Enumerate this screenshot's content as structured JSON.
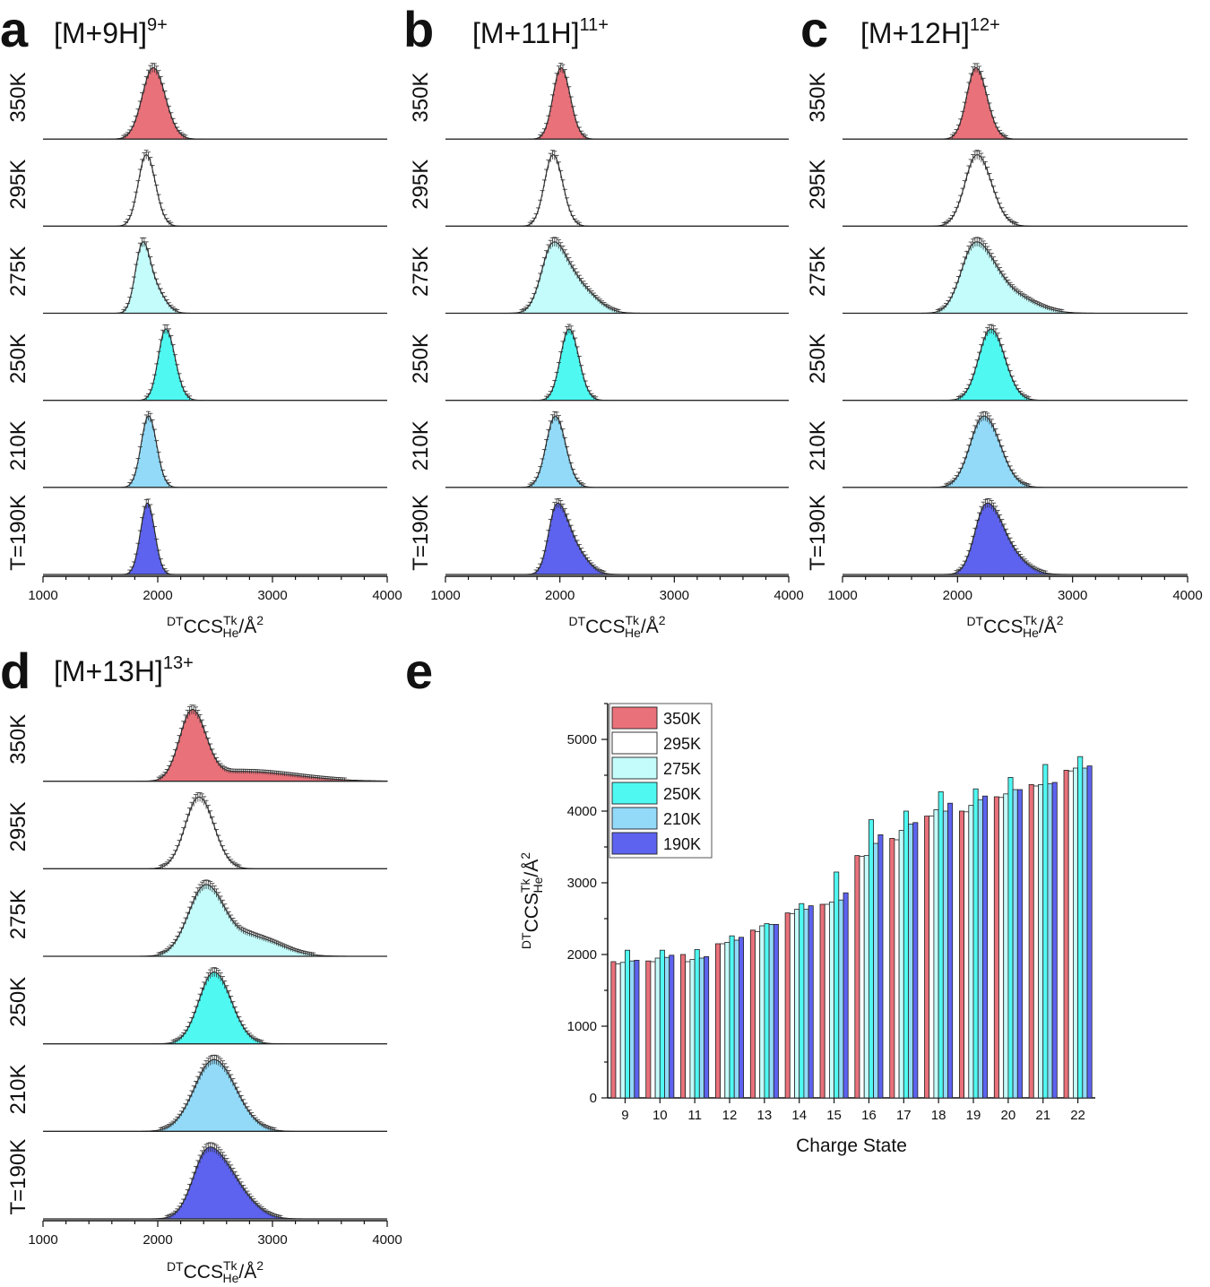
{
  "colors": {
    "350K": "#e9717a",
    "295K": "#ffffff",
    "275K": "#c4fbfb",
    "250K": "#4ff9f2",
    "210K": "#92daf8",
    "190K": "#5d63ef"
  },
  "chart_data": [
    {
      "panel": "a",
      "type": "area",
      "ion": "[M+9H]",
      "charge_sup": "9+",
      "xlabel": {
        "pre": "DT",
        "main": "CCS",
        "sup": "Tk",
        "sub": "He",
        "post": "/Å",
        "post_sup": "2"
      },
      "xlim": [
        1000,
        4000
      ],
      "xticks": [
        "1000",
        "2000",
        "3000",
        "4000"
      ],
      "traces": [
        {
          "label": "350K",
          "temp": "350K",
          "peaks": [
            {
              "mu": 1960,
              "sl": 95,
              "sr": 105,
              "a": 1.0
            }
          ]
        },
        {
          "label": "295K",
          "temp": "295K",
          "peaks": [
            {
              "mu": 1900,
              "sl": 70,
              "sr": 80,
              "a": 1.0
            }
          ]
        },
        {
          "label": "275K",
          "temp": "275K",
          "peaks": [
            {
              "mu": 1860,
              "sl": 60,
              "sr": 60,
              "a": 1.0
            },
            {
              "mu": 1960,
              "sl": 70,
              "sr": 90,
              "a": 0.45
            }
          ]
        },
        {
          "label": "250K",
          "temp": "250K",
          "peaks": [
            {
              "mu": 2070,
              "sl": 65,
              "sr": 80,
              "a": 1.0
            }
          ]
        },
        {
          "label": "210K",
          "temp": "210K",
          "peaks": [
            {
              "mu": 1920,
              "sl": 65,
              "sr": 70,
              "a": 1.0
            }
          ]
        },
        {
          "label": "T=190K",
          "temp": "190K",
          "peaks": [
            {
              "mu": 1920,
              "sl": 55,
              "sr": 60,
              "a": 1.0
            },
            {
              "mu": 1860,
              "sl": 50,
              "sr": 50,
              "a": 0.25
            }
          ]
        }
      ]
    },
    {
      "panel": "b",
      "type": "area",
      "ion": "[M+11H]",
      "charge_sup": "11+",
      "xlabel": {
        "pre": "DT",
        "main": "CCS",
        "sup": "Tk",
        "sub": "He",
        "post": "/Å",
        "post_sup": "2"
      },
      "xlim": [
        1000,
        4000
      ],
      "xticks": [
        "1000",
        "2000",
        "3000",
        "4000"
      ],
      "traces": [
        {
          "label": "350K",
          "temp": "350K",
          "peaks": [
            {
              "mu": 2010,
              "sl": 70,
              "sr": 80,
              "a": 1.0
            }
          ]
        },
        {
          "label": "295K",
          "temp": "295K",
          "peaks": [
            {
              "mu": 1940,
              "sl": 75,
              "sr": 85,
              "a": 1.0
            }
          ]
        },
        {
          "label": "275K",
          "temp": "275K",
          "peaks": [
            {
              "mu": 1940,
              "sl": 100,
              "sr": 120,
              "a": 1.0
            },
            {
              "mu": 2170,
              "sl": 110,
              "sr": 150,
              "a": 0.35
            }
          ]
        },
        {
          "label": "250K",
          "temp": "250K",
          "peaks": [
            {
              "mu": 2080,
              "sl": 75,
              "sr": 85,
              "a": 1.0
            }
          ]
        },
        {
          "label": "210K",
          "temp": "210K",
          "peaks": [
            {
              "mu": 1960,
              "sl": 80,
              "sr": 90,
              "a": 1.0
            }
          ]
        },
        {
          "label": "T=190K",
          "temp": "190K",
          "peaks": [
            {
              "mu": 1970,
              "sl": 70,
              "sr": 90,
              "a": 1.0
            },
            {
              "mu": 2130,
              "sl": 90,
              "sr": 110,
              "a": 0.35
            }
          ]
        }
      ]
    },
    {
      "panel": "c",
      "type": "area",
      "ion": "[M+12H]",
      "charge_sup": "12+",
      "xlabel": {
        "pre": "DT",
        "main": "CCS",
        "sup": "Tk",
        "sub": "He",
        "post": "/Å",
        "post_sup": "2"
      },
      "xlim": [
        1000,
        4000
      ],
      "xticks": [
        "1000",
        "2000",
        "3000",
        "4000"
      ],
      "traces": [
        {
          "label": "350K",
          "temp": "350K",
          "peaks": [
            {
              "mu": 2160,
              "sl": 80,
              "sr": 95,
              "a": 1.0
            }
          ]
        },
        {
          "label": "295K",
          "temp": "295K",
          "peaks": [
            {
              "mu": 2170,
              "sl": 105,
              "sr": 125,
              "a": 1.0
            }
          ]
        },
        {
          "label": "275K",
          "temp": "275K",
          "peaks": [
            {
              "mu": 2150,
              "sl": 120,
              "sr": 150,
              "a": 1.0
            },
            {
              "mu": 2420,
              "sl": 150,
              "sr": 220,
              "a": 0.3
            }
          ]
        },
        {
          "label": "250K",
          "temp": "250K",
          "peaks": [
            {
              "mu": 2290,
              "sl": 105,
              "sr": 120,
              "a": 1.0
            }
          ]
        },
        {
          "label": "210K",
          "temp": "210K",
          "peaks": [
            {
              "mu": 2230,
              "sl": 120,
              "sr": 140,
              "a": 1.0
            }
          ]
        },
        {
          "label": "T=190K",
          "temp": "190K",
          "peaks": [
            {
              "mu": 2240,
              "sl": 95,
              "sr": 120,
              "a": 1.0
            },
            {
              "mu": 2420,
              "sl": 120,
              "sr": 150,
              "a": 0.35
            }
          ]
        }
      ]
    },
    {
      "panel": "d",
      "type": "area",
      "ion": "[M+13H]",
      "charge_sup": "13+",
      "xlabel": {
        "pre": "DT",
        "main": "CCS",
        "sup": "Tk",
        "sub": "He",
        "post": "/Å",
        "post_sup": "2"
      },
      "xlim": [
        1000,
        4000
      ],
      "xticks": [
        "1000",
        "2000",
        "3000",
        "4000"
      ],
      "traces": [
        {
          "label": "350K",
          "temp": "350K",
          "peaks": [
            {
              "mu": 2300,
              "sl": 110,
              "sr": 120,
              "a": 1.0
            },
            {
              "mu": 2750,
              "sl": 250,
              "sr": 450,
              "a": 0.14
            }
          ]
        },
        {
          "label": "295K",
          "temp": "295K",
          "peaks": [
            {
              "mu": 2360,
              "sl": 120,
              "sr": 130,
              "a": 1.0
            }
          ]
        },
        {
          "label": "275K",
          "temp": "275K",
          "peaks": [
            {
              "mu": 2420,
              "sl": 150,
              "sr": 170,
              "a": 1.0
            },
            {
              "mu": 2850,
              "sl": 150,
              "sr": 230,
              "a": 0.25
            }
          ]
        },
        {
          "label": "250K",
          "temp": "250K",
          "peaks": [
            {
              "mu": 2490,
              "sl": 130,
              "sr": 150,
              "a": 1.0
            }
          ]
        },
        {
          "label": "210K",
          "temp": "210K",
          "peaks": [
            {
              "mu": 2490,
              "sl": 170,
              "sr": 190,
              "a": 1.0
            }
          ]
        },
        {
          "label": "T=190K",
          "temp": "190K",
          "peaks": [
            {
              "mu": 2440,
              "sl": 130,
              "sr": 160,
              "a": 1.0
            },
            {
              "mu": 2700,
              "sl": 130,
              "sr": 160,
              "a": 0.3
            }
          ]
        }
      ]
    },
    {
      "panel": "e",
      "type": "bar",
      "xlabel": "Charge State",
      "ylabel": {
        "pre": "DT",
        "main": "CCS",
        "sup": "Tk",
        "sub": "He",
        "post": "/Å",
        "post_sup": "2"
      },
      "ylim": [
        0,
        5500
      ],
      "yticks": [
        0,
        1000,
        2000,
        3000,
        4000,
        5000
      ],
      "categories": [
        "9",
        "10",
        "11",
        "12",
        "13",
        "14",
        "15",
        "16",
        "17",
        "18",
        "19",
        "20",
        "21",
        "22"
      ],
      "series": [
        {
          "name": "350K",
          "values": [
            1900,
            1910,
            2000,
            2150,
            2340,
            2580,
            2700,
            3380,
            3620,
            3930,
            4000,
            4200,
            4370,
            4570
          ]
        },
        {
          "name": "295K",
          "values": [
            1870,
            1900,
            1900,
            2150,
            2320,
            2570,
            2700,
            3370,
            3600,
            3930,
            3990,
            4190,
            4350,
            4560
          ]
        },
        {
          "name": "275K",
          "values": [
            1890,
            1950,
            1930,
            2170,
            2400,
            2630,
            2730,
            3380,
            3730,
            4020,
            4080,
            4240,
            4370,
            4600
          ]
        },
        {
          "name": "250K",
          "values": [
            2060,
            2060,
            2070,
            2260,
            2430,
            2710,
            3150,
            3880,
            4000,
            4270,
            4310,
            4470,
            4650,
            4760
          ]
        },
        {
          "name": "210K",
          "values": [
            1910,
            1960,
            1950,
            2200,
            2420,
            2630,
            2760,
            3550,
            3820,
            4000,
            4160,
            4300,
            4380,
            4600
          ]
        },
        {
          "name": "190K",
          "values": [
            1920,
            1990,
            1970,
            2240,
            2420,
            2680,
            2860,
            3670,
            3840,
            4110,
            4210,
            4300,
            4400,
            4630
          ]
        }
      ]
    }
  ]
}
